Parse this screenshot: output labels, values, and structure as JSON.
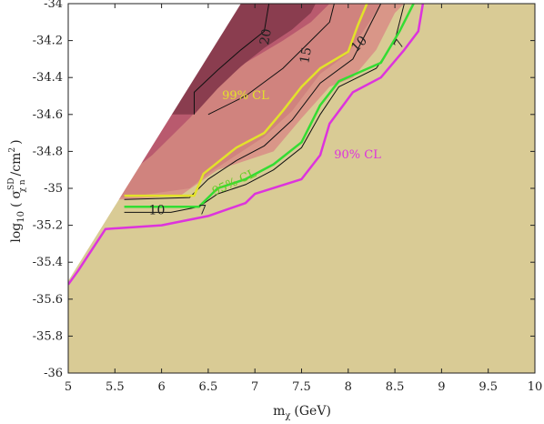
{
  "chart_data": {
    "type": "contour",
    "title": "",
    "xlabel": "m_χ (GeV)",
    "ylabel": "log10 ( σ^SD χ n / cm^2 )",
    "xlabel_parts": {
      "main": "m",
      "sub": "χ",
      "unit": "(GeV)"
    },
    "ylabel_parts": {
      "main": "log",
      "sub": "10",
      "sigma": "σ",
      "sup": "SD",
      "sigma_sub": "χ n",
      "unit": "/cm",
      "unit_sup": "2"
    },
    "xlim": [
      5,
      10
    ],
    "ylim": [
      -36,
      -34
    ],
    "xticks": [
      5,
      5.5,
      6,
      6.5,
      7,
      7.5,
      8,
      8.5,
      9,
      9.5,
      10
    ],
    "xtick_labels": [
      "5",
      "5.5",
      "6",
      "6.5",
      "7",
      "7.5",
      "8",
      "8.5",
      "9",
      "9.5",
      "10"
    ],
    "yticks": [
      -36,
      -35.8,
      -35.6,
      -35.4,
      -35.2,
      -35,
      -34.8,
      -34.6,
      -34.4,
      -34.2,
      -34
    ],
    "ytick_labels": [
      "-36",
      "-35.8",
      "-35.6",
      "-35.4",
      "-35.2",
      "-35",
      "-34.8",
      "-34.6",
      "-34.4",
      "-34.2",
      "-34"
    ],
    "colors": {
      "background_fill": "#d9cb95",
      "level_7": "#d99688",
      "level_10": "#d0837e",
      "level_15": "#b95a6e",
      "level_20": "#8a3d4f",
      "contour_line": "#111111",
      "cl99": "#e2e22a",
      "cl95": "#33dd33",
      "cl90": "#dd33dd"
    },
    "excluded_edge": [
      [
        5,
        -35.5
      ],
      [
        6.85,
        -34
      ]
    ],
    "regions": [
      {
        "name": "level-7",
        "points": [
          [
            5.6,
            -35.06
          ],
          [
            6.2,
            -35.04
          ],
          [
            6.4,
            -34.97
          ],
          [
            6.6,
            -34.9
          ],
          [
            6.9,
            -34.85
          ],
          [
            7.2,
            -34.8
          ],
          [
            7.5,
            -34.62
          ],
          [
            7.8,
            -34.45
          ],
          [
            8.05,
            -34.4
          ],
          [
            8.3,
            -34.25
          ],
          [
            8.5,
            -34.05
          ],
          [
            8.6,
            -34
          ]
        ]
      },
      {
        "name": "level-10",
        "points": [
          [
            5.6,
            -35.05
          ],
          [
            6.3,
            -35.0
          ],
          [
            6.5,
            -34.92
          ],
          [
            6.8,
            -34.82
          ],
          [
            7.1,
            -34.72
          ],
          [
            7.4,
            -34.58
          ],
          [
            7.7,
            -34.38
          ],
          [
            8.0,
            -34.27
          ],
          [
            8.2,
            -34.12
          ],
          [
            8.35,
            -34
          ]
        ]
      },
      {
        "name": "level-15",
        "points": [
          [
            5.45,
            -35.0
          ],
          [
            5.9,
            -34.82
          ],
          [
            6.3,
            -34.62
          ],
          [
            6.6,
            -34.45
          ],
          [
            6.9,
            -34.32
          ],
          [
            7.3,
            -34.2
          ],
          [
            7.6,
            -34.1
          ],
          [
            7.8,
            -34
          ]
        ]
      },
      {
        "name": "level-20",
        "points": [
          [
            6.35,
            -34.6
          ],
          [
            6.6,
            -34.46
          ],
          [
            6.85,
            -34.34
          ],
          [
            7.1,
            -34.24
          ],
          [
            7.4,
            -34.14
          ],
          [
            7.6,
            -34.05
          ],
          [
            7.65,
            -34
          ]
        ]
      }
    ],
    "contour_lines": [
      {
        "level": "7",
        "points": [
          [
            5.6,
            -35.13
          ],
          [
            6.1,
            -35.13
          ],
          [
            6.4,
            -35.1
          ],
          [
            6.6,
            -35.03
          ],
          [
            6.9,
            -34.98
          ],
          [
            7.2,
            -34.9
          ],
          [
            7.5,
            -34.78
          ],
          [
            7.7,
            -34.6
          ],
          [
            7.9,
            -34.45
          ],
          [
            8.3,
            -34.35
          ],
          [
            8.5,
            -34.2
          ],
          [
            8.6,
            -34
          ]
        ]
      },
      {
        "level": "10",
        "points": [
          [
            5.6,
            -35.06
          ],
          [
            6.3,
            -35.05
          ],
          [
            6.5,
            -34.95
          ],
          [
            6.8,
            -34.85
          ],
          [
            7.1,
            -34.77
          ],
          [
            7.4,
            -34.63
          ],
          [
            7.7,
            -34.43
          ],
          [
            8.05,
            -34.3
          ],
          [
            8.2,
            -34.15
          ],
          [
            8.35,
            -34
          ]
        ]
      },
      {
        "level": "15",
        "points": [
          [
            6.5,
            -34.6
          ],
          [
            6.9,
            -34.5
          ],
          [
            7.3,
            -34.35
          ],
          [
            7.6,
            -34.2
          ],
          [
            7.8,
            -34.1
          ],
          [
            7.85,
            -34
          ]
        ]
      },
      {
        "level": "20",
        "points": [
          [
            6.35,
            -34.6
          ],
          [
            6.35,
            -34.48
          ],
          [
            6.6,
            -34.36
          ],
          [
            6.85,
            -34.25
          ],
          [
            7.1,
            -34.15
          ],
          [
            7.15,
            -34
          ]
        ]
      }
    ],
    "cl_lines": [
      {
        "name": "99% CL",
        "color": "#e2e22a",
        "points": [
          [
            5.6,
            -35.04
          ],
          [
            6.35,
            -35.04
          ],
          [
            6.45,
            -34.92
          ],
          [
            6.8,
            -34.78
          ],
          [
            7.1,
            -34.7
          ],
          [
            7.3,
            -34.58
          ],
          [
            7.5,
            -34.45
          ],
          [
            7.7,
            -34.35
          ],
          [
            8.0,
            -34.26
          ],
          [
            8.1,
            -34.12
          ],
          [
            8.2,
            -34
          ]
        ]
      },
      {
        "name": "95% CL",
        "color": "#33dd33",
        "points": [
          [
            5.6,
            -35.1
          ],
          [
            6.4,
            -35.1
          ],
          [
            6.6,
            -35.0
          ],
          [
            6.9,
            -34.95
          ],
          [
            7.2,
            -34.87
          ],
          [
            7.5,
            -34.75
          ],
          [
            7.7,
            -34.55
          ],
          [
            7.9,
            -34.42
          ],
          [
            8.35,
            -34.32
          ],
          [
            8.55,
            -34.15
          ],
          [
            8.7,
            -34
          ]
        ]
      },
      {
        "name": "90% CL",
        "color": "#dd33dd",
        "points": [
          [
            5.0,
            -35.52
          ],
          [
            5.1,
            -35.45
          ],
          [
            5.4,
            -35.22
          ],
          [
            6.0,
            -35.2
          ],
          [
            6.5,
            -35.15
          ],
          [
            6.9,
            -35.08
          ],
          [
            7.0,
            -35.03
          ],
          [
            7.5,
            -34.95
          ],
          [
            7.7,
            -34.82
          ],
          [
            7.8,
            -34.65
          ],
          [
            8.05,
            -34.48
          ],
          [
            8.35,
            -34.4
          ],
          [
            8.6,
            -34.25
          ],
          [
            8.75,
            -34.15
          ],
          [
            8.8,
            -34
          ]
        ]
      }
    ],
    "contour_labels": [
      {
        "text": "20",
        "x": 7.12,
        "y": -34.18,
        "rotate": -80
      },
      {
        "text": "15",
        "x": 7.55,
        "y": -34.28,
        "rotate": -80
      },
      {
        "text": "10",
        "x": 8.12,
        "y": -34.22,
        "rotate": -45
      },
      {
        "text": "7",
        "x": 8.55,
        "y": -34.22,
        "rotate": -60
      },
      {
        "text": "10",
        "x": 5.95,
        "y": -35.12,
        "rotate": 0
      },
      {
        "text": "7",
        "x": 6.44,
        "y": -35.12,
        "rotate": 0
      }
    ],
    "cl_labels": [
      {
        "text": "99% CL",
        "x": 6.9,
        "y": -34.5,
        "color": "#e2e22a",
        "rotate": 0
      },
      {
        "text": "95% CL",
        "x": 6.78,
        "y": -34.97,
        "color": "#66cc22",
        "rotate": -25
      },
      {
        "text": "90% CL",
        "x": 8.1,
        "y": -34.82,
        "color": "#dd33dd",
        "rotate": 0
      }
    ]
  }
}
